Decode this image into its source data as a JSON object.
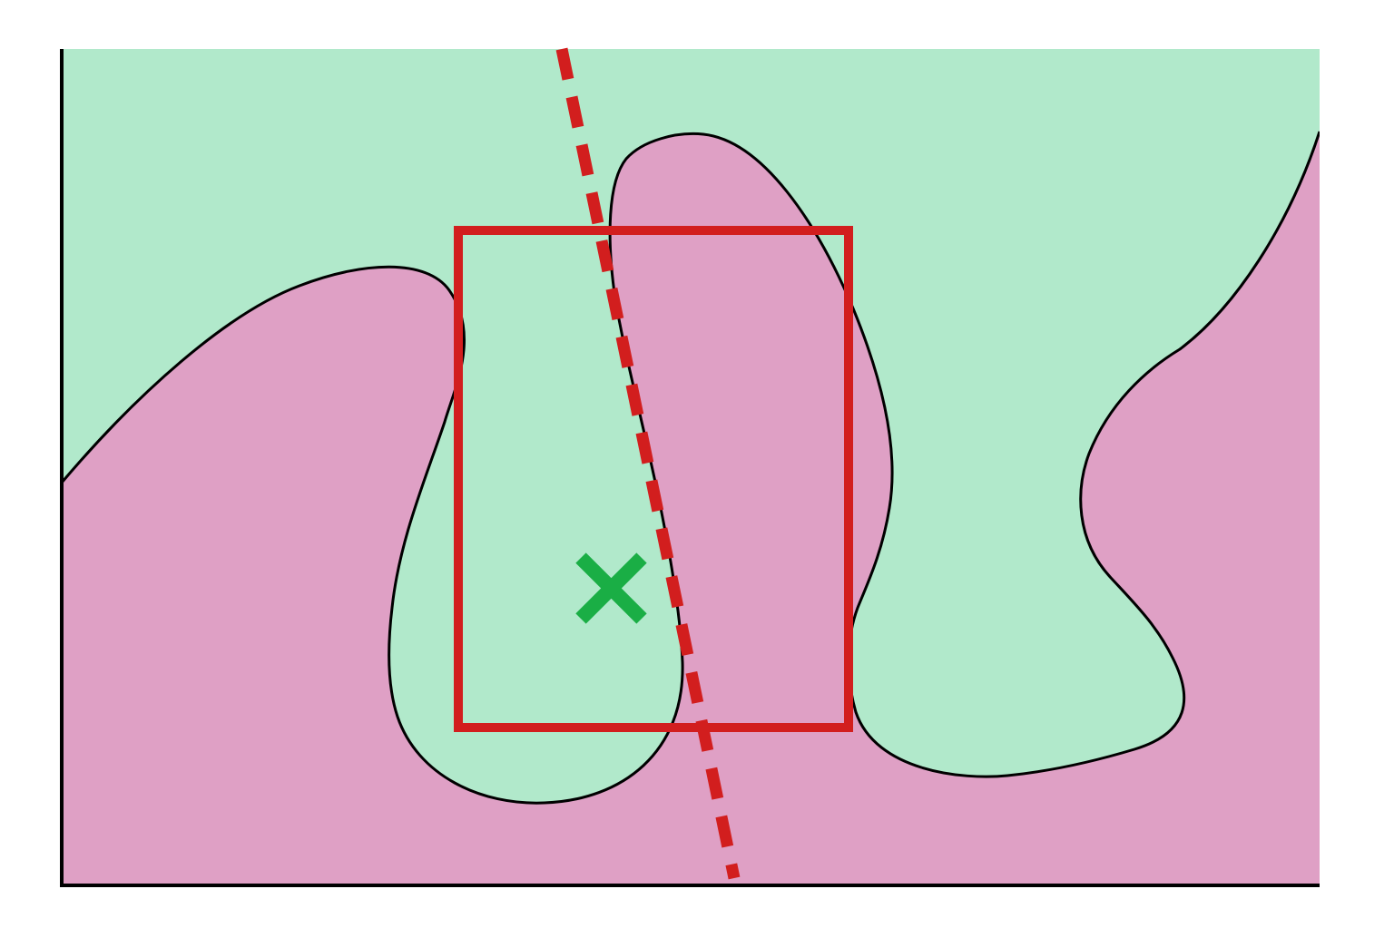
{
  "diagram": {
    "description_free": true,
    "colors": {
      "background": "#ffffff",
      "class_a_region": "#b1e9cb",
      "class_b_region": "#dfa0c5",
      "boundary": "#000000",
      "box": "#d21e1e",
      "dashed_line": "#d21e1e",
      "marker": "#1aae45",
      "axes": "#000000"
    },
    "icons": {
      "marker": "cross-mark-icon"
    }
  }
}
